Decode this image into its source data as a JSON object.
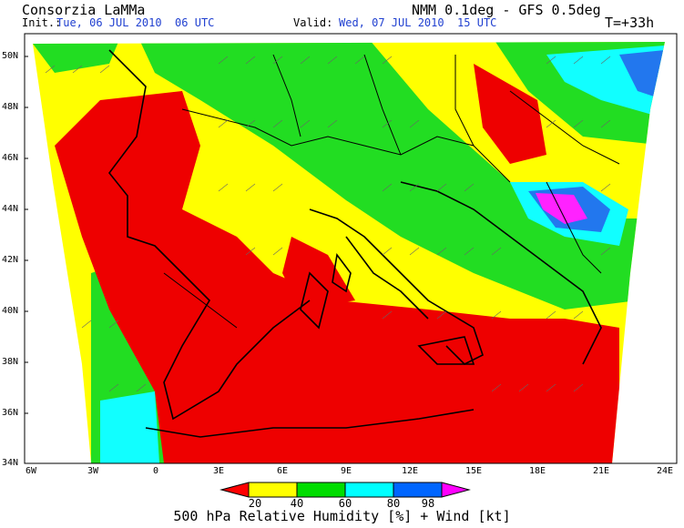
{
  "header": {
    "org": "Consorzia LaMMa",
    "model": "NMM 0.1deg - GFS 0.5deg",
    "init_label": "Init.:",
    "init_value": "Tue, 06 JUL 2010  06 UTC",
    "valid_label": "Valid:",
    "valid_value": "Wed, 07 JUL 2010  15 UTC",
    "lead": "T=+33h"
  },
  "axes": {
    "lat_labels": [
      "50N",
      "48N",
      "46N",
      "44N",
      "42N",
      "40N",
      "38N",
      "36N",
      "34N"
    ],
    "lon_labels": [
      "6W",
      "3W",
      "0",
      "3E",
      "6E",
      "9E",
      "12E",
      "15E",
      "18E",
      "21E",
      "24E"
    ]
  },
  "colorbar": {
    "ticks": [
      "20",
      "40",
      "60",
      "80",
      "98"
    ],
    "colors": [
      "#ff0000",
      "#ffff00",
      "#00dd00",
      "#00ffff",
      "#0066ff",
      "#ff00ff"
    ]
  },
  "caption": "500 hPa Relative Humidity [%] + Wind [kt]",
  "legend_colors": {
    "lt20": "#ee0000",
    "20_40": "#ffff00",
    "40_60": "#22dd22",
    "60_80": "#11ffff",
    "80_98": "#2277ee",
    "gt98": "#ff22ff"
  }
}
